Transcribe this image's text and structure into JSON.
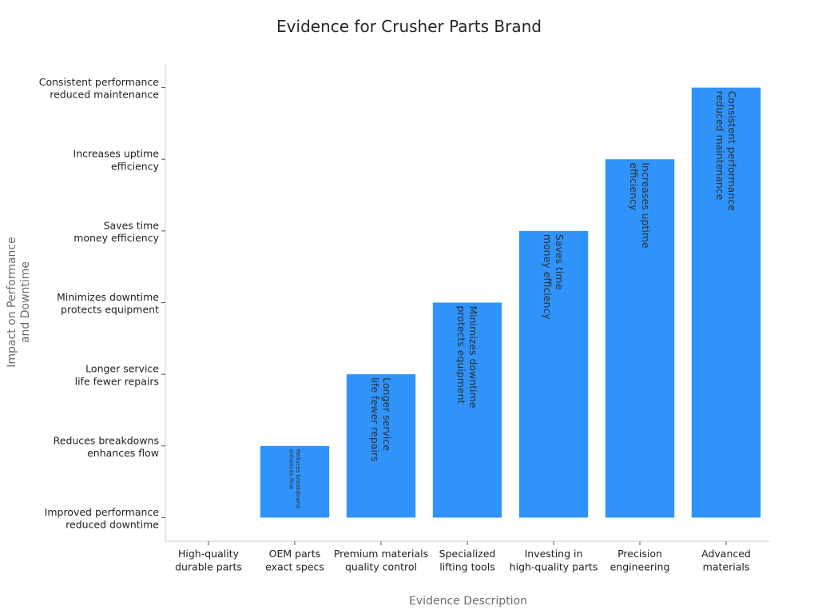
{
  "chart_data": {
    "type": "bar",
    "title": "Evidence for Crusher Parts Brand",
    "xlabel": "Evidence Description",
    "ylabel": "Impact on Performance and Downtime",
    "categories": [
      "High-quality durable parts",
      "OEM parts exact specs",
      "Premium materials quality control",
      "Specialized lifting tools",
      "Investing in high-quality parts",
      "Precision engineering",
      "Advanced materials"
    ],
    "y_categories": [
      "Improved performance reduced downtime",
      "Reduces breakdowns enhances flow",
      "Longer service life fewer repairs",
      "Minimizes downtime protects equipment",
      "Saves time money efficiency",
      "Increases uptime efficiency",
      "Consistent performance reduced maintenance"
    ],
    "values": [
      0,
      1,
      2,
      3,
      4,
      5,
      6
    ],
    "bar_labels": [
      "",
      "Reduces breakdowns enhances flow",
      "Longer service life fewer repairs",
      "Minimizes downtime protects equipment",
      "Saves time money efficiency",
      "Increases uptime efficiency",
      "Consistent performance reduced maintenance"
    ],
    "ylim": [
      -0.33,
      6.33
    ],
    "grid": false,
    "legend": "none",
    "bar_color": "#2f93fa"
  }
}
